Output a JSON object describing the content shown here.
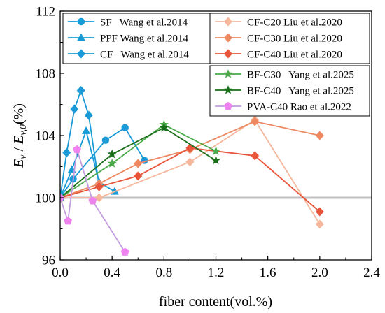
{
  "chart_data": {
    "type": "line",
    "xlabel": "fiber content(vol.%)",
    "ylabel_main": "E",
    "ylabel_sub1": "v",
    "ylabel_mid": " / ",
    "ylabel_sub2": "v,0",
    "ylabel_unit": "(%)",
    "xlim": [
      0,
      2.4
    ],
    "ylim": [
      96,
      112
    ],
    "xticks": [
      "0.0",
      "0.4",
      "0.8",
      "1.2",
      "1.6",
      "2.0",
      "2.4"
    ],
    "yticks": [
      "96",
      "100",
      "104",
      "108",
      "112"
    ],
    "reference_line": 100,
    "grid": false,
    "series": [
      {
        "name": "SF   Wang et al.2014",
        "color": "#1a9bd7",
        "marker": "circle",
        "x": [
          0,
          0.1,
          0.35,
          0.5,
          0.65
        ],
        "y": [
          100,
          101.2,
          103.7,
          104.5,
          102.4
        ]
      },
      {
        "name": "PPF Wang et al.2014",
        "color": "#1a9bd7",
        "marker": "triangle",
        "x": [
          0,
          0.09,
          0.2,
          0.3,
          0.42
        ],
        "y": [
          100,
          101.8,
          104.3,
          101.0,
          100.4
        ]
      },
      {
        "name": "CF   Wang et al.2014",
        "color": "#1a9bd7",
        "marker": "diamond",
        "x": [
          0,
          0.05,
          0.11,
          0.16,
          0.22,
          0.3
        ],
        "y": [
          100,
          102.9,
          105.7,
          106.9,
          105.3,
          100.8
        ]
      },
      {
        "name": "CF-C20 Liu et al.2020",
        "color": "#f6b79c",
        "marker": "diamond",
        "x": [
          0,
          0.3,
          1.0,
          1.5,
          2.0
        ],
        "y": [
          100,
          100.0,
          102.3,
          105.0,
          98.3
        ]
      },
      {
        "name": "CF-C30 Liu et al.2020",
        "color": "#ee8860",
        "marker": "diamond",
        "x": [
          0,
          0.3,
          0.6,
          1.0,
          1.5,
          2.0
        ],
        "y": [
          100,
          100.9,
          102.2,
          103.1,
          104.9,
          104.0
        ]
      },
      {
        "name": "CF-C40 Liu et al.2020",
        "color": "#e8553a",
        "marker": "diamond",
        "x": [
          0,
          0.3,
          0.6,
          1.0,
          1.5,
          2.0
        ],
        "y": [
          100,
          100.7,
          101.4,
          103.2,
          102.7,
          99.1
        ]
      },
      {
        "name": "BF-C30   Yang et al.2025",
        "color": "#4aaa4a",
        "marker": "star",
        "x": [
          0,
          0.4,
          0.8,
          1.2
        ],
        "y": [
          100,
          102.2,
          104.7,
          103.0
        ]
      },
      {
        "name": "BF-C40   Yang et al.2025",
        "color": "#1a6e1a",
        "marker": "star",
        "x": [
          0,
          0.4,
          0.8,
          1.2
        ],
        "y": [
          100,
          102.8,
          104.5,
          102.4
        ]
      },
      {
        "name": "PVA-C40 Rao et al.2022",
        "color": "#ee82ee",
        "marker": "pentagon",
        "line_color": "#c39be0",
        "x": [
          0,
          0.06,
          0.13,
          0.25,
          0.5
        ],
        "y": [
          100,
          98.5,
          103.1,
          99.8,
          96.5
        ]
      }
    ],
    "legends": [
      {
        "placement": "top-left",
        "series": [
          0,
          1,
          2
        ]
      },
      {
        "placement": "top-right",
        "series": [
          3,
          4,
          5
        ]
      },
      {
        "placement": "middle-right",
        "series": [
          6,
          7,
          8
        ]
      }
    ]
  }
}
